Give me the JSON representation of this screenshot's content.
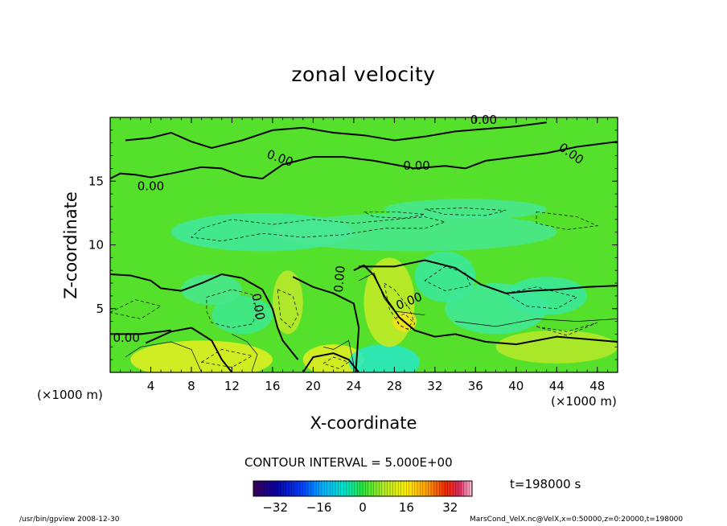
{
  "chart_data": {
    "type": "heatmap",
    "title": "zonal velocity",
    "xlabel": "X-coordinate",
    "ylabel": "Z-coordinate",
    "x_unit": "(×1000 m)",
    "x_ticks": [
      4,
      8,
      12,
      16,
      20,
      24,
      28,
      32,
      36,
      40,
      44,
      48
    ],
    "y_ticks": [
      5,
      10,
      15
    ],
    "xlim": [
      0,
      50
    ],
    "ylim": [
      0,
      20
    ],
    "contour_label": "0.00",
    "contour_interval_text": "CONTOUR INTERVAL = 5.000E+00",
    "time_text": "t=198000 s",
    "colorbar": {
      "ticks": [
        -32,
        -16,
        0,
        16,
        32
      ],
      "range": [
        -40,
        40
      ]
    },
    "colors": {
      "background_field": "#55e02c",
      "positive": "#f0f020",
      "negative": "#30e8b0"
    }
  },
  "footer": {
    "left": "/usr/bin/gpview   2008-12-30",
    "right": "MarsCond_VelX.nc@VelX,x=0:50000,z=0:20000,t=198000"
  }
}
